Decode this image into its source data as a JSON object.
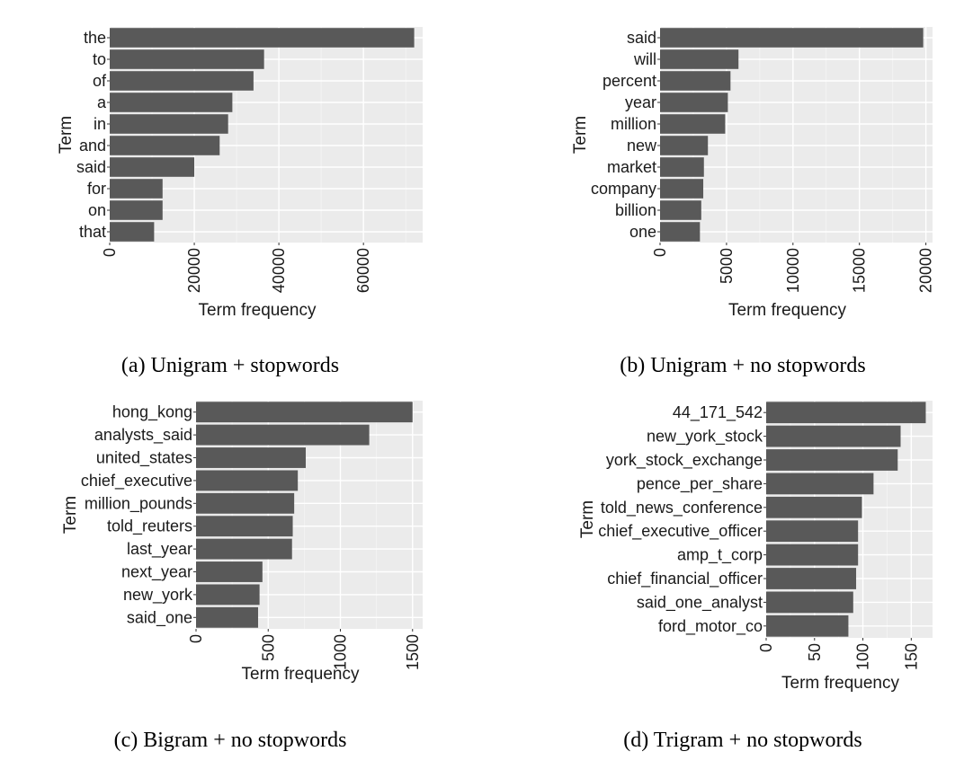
{
  "chart_data": [
    {
      "type": "bar",
      "orientation": "horizontal",
      "caption": "(a) Unigram + stopwords",
      "xlabel": "Term frequency",
      "ylabel": "Term",
      "categories": [
        "the",
        "to",
        "of",
        "a",
        "in",
        "and",
        "said",
        "for",
        "on",
        "that"
      ],
      "values": [
        72000,
        36500,
        34000,
        29000,
        28000,
        26000,
        20000,
        12500,
        12500,
        10500
      ],
      "xlim": [
        0,
        74000
      ],
      "xticks": [
        "0",
        "20000",
        "40000",
        "60000"
      ],
      "xtick_values": [
        0,
        20000,
        40000,
        60000
      ],
      "grid": true
    },
    {
      "type": "bar",
      "orientation": "horizontal",
      "caption": "(b) Unigram + no stopwords",
      "xlabel": "Term frequency",
      "ylabel": "Term",
      "categories": [
        "said",
        "will",
        "percent",
        "year",
        "million",
        "new",
        "market",
        "company",
        "billion",
        "one"
      ],
      "values": [
        19800,
        5900,
        5300,
        5100,
        4900,
        3600,
        3300,
        3250,
        3100,
        3000
      ],
      "xlim": [
        0,
        20500
      ],
      "xticks": [
        "0",
        "5000",
        "10000",
        "15000",
        "20000"
      ],
      "xtick_values": [
        0,
        5000,
        10000,
        15000,
        20000
      ],
      "grid": true
    },
    {
      "type": "bar",
      "orientation": "horizontal",
      "caption": "(c) Bigram + no stopwords",
      "xlabel": "Term frequency",
      "ylabel": "Term",
      "categories": [
        "hong_kong",
        "analysts_said",
        "united_states",
        "chief_executive",
        "million_pounds",
        "told_reuters",
        "last_year",
        "next_year",
        "new_york",
        "said_one"
      ],
      "values": [
        1500,
        1200,
        760,
        705,
        680,
        670,
        665,
        460,
        440,
        430
      ],
      "xlim": [
        0,
        1570
      ],
      "xticks": [
        "0",
        "500",
        "1000",
        "1500"
      ],
      "xtick_values": [
        0,
        500,
        1000,
        1500
      ],
      "grid": true
    },
    {
      "type": "bar",
      "orientation": "horizontal",
      "caption": "(d) Trigram + no stopwords",
      "xlabel": "Term frequency",
      "ylabel": "Term",
      "categories": [
        "44_171_542",
        "new_york_stock",
        "york_stock_exchange",
        "pence_per_share",
        "told_news_conference",
        "chief_executive_officer",
        "amp_t_corp",
        "chief_financial_officer",
        "said_one_analyst",
        "ford_motor_co"
      ],
      "values": [
        165,
        139,
        136,
        111,
        99,
        95,
        95,
        93,
        90,
        85
      ],
      "xlim": [
        0,
        172
      ],
      "xticks": [
        "0",
        "50",
        "100",
        "150"
      ],
      "xtick_values": [
        0,
        50,
        100,
        150
      ],
      "grid": true
    }
  ]
}
